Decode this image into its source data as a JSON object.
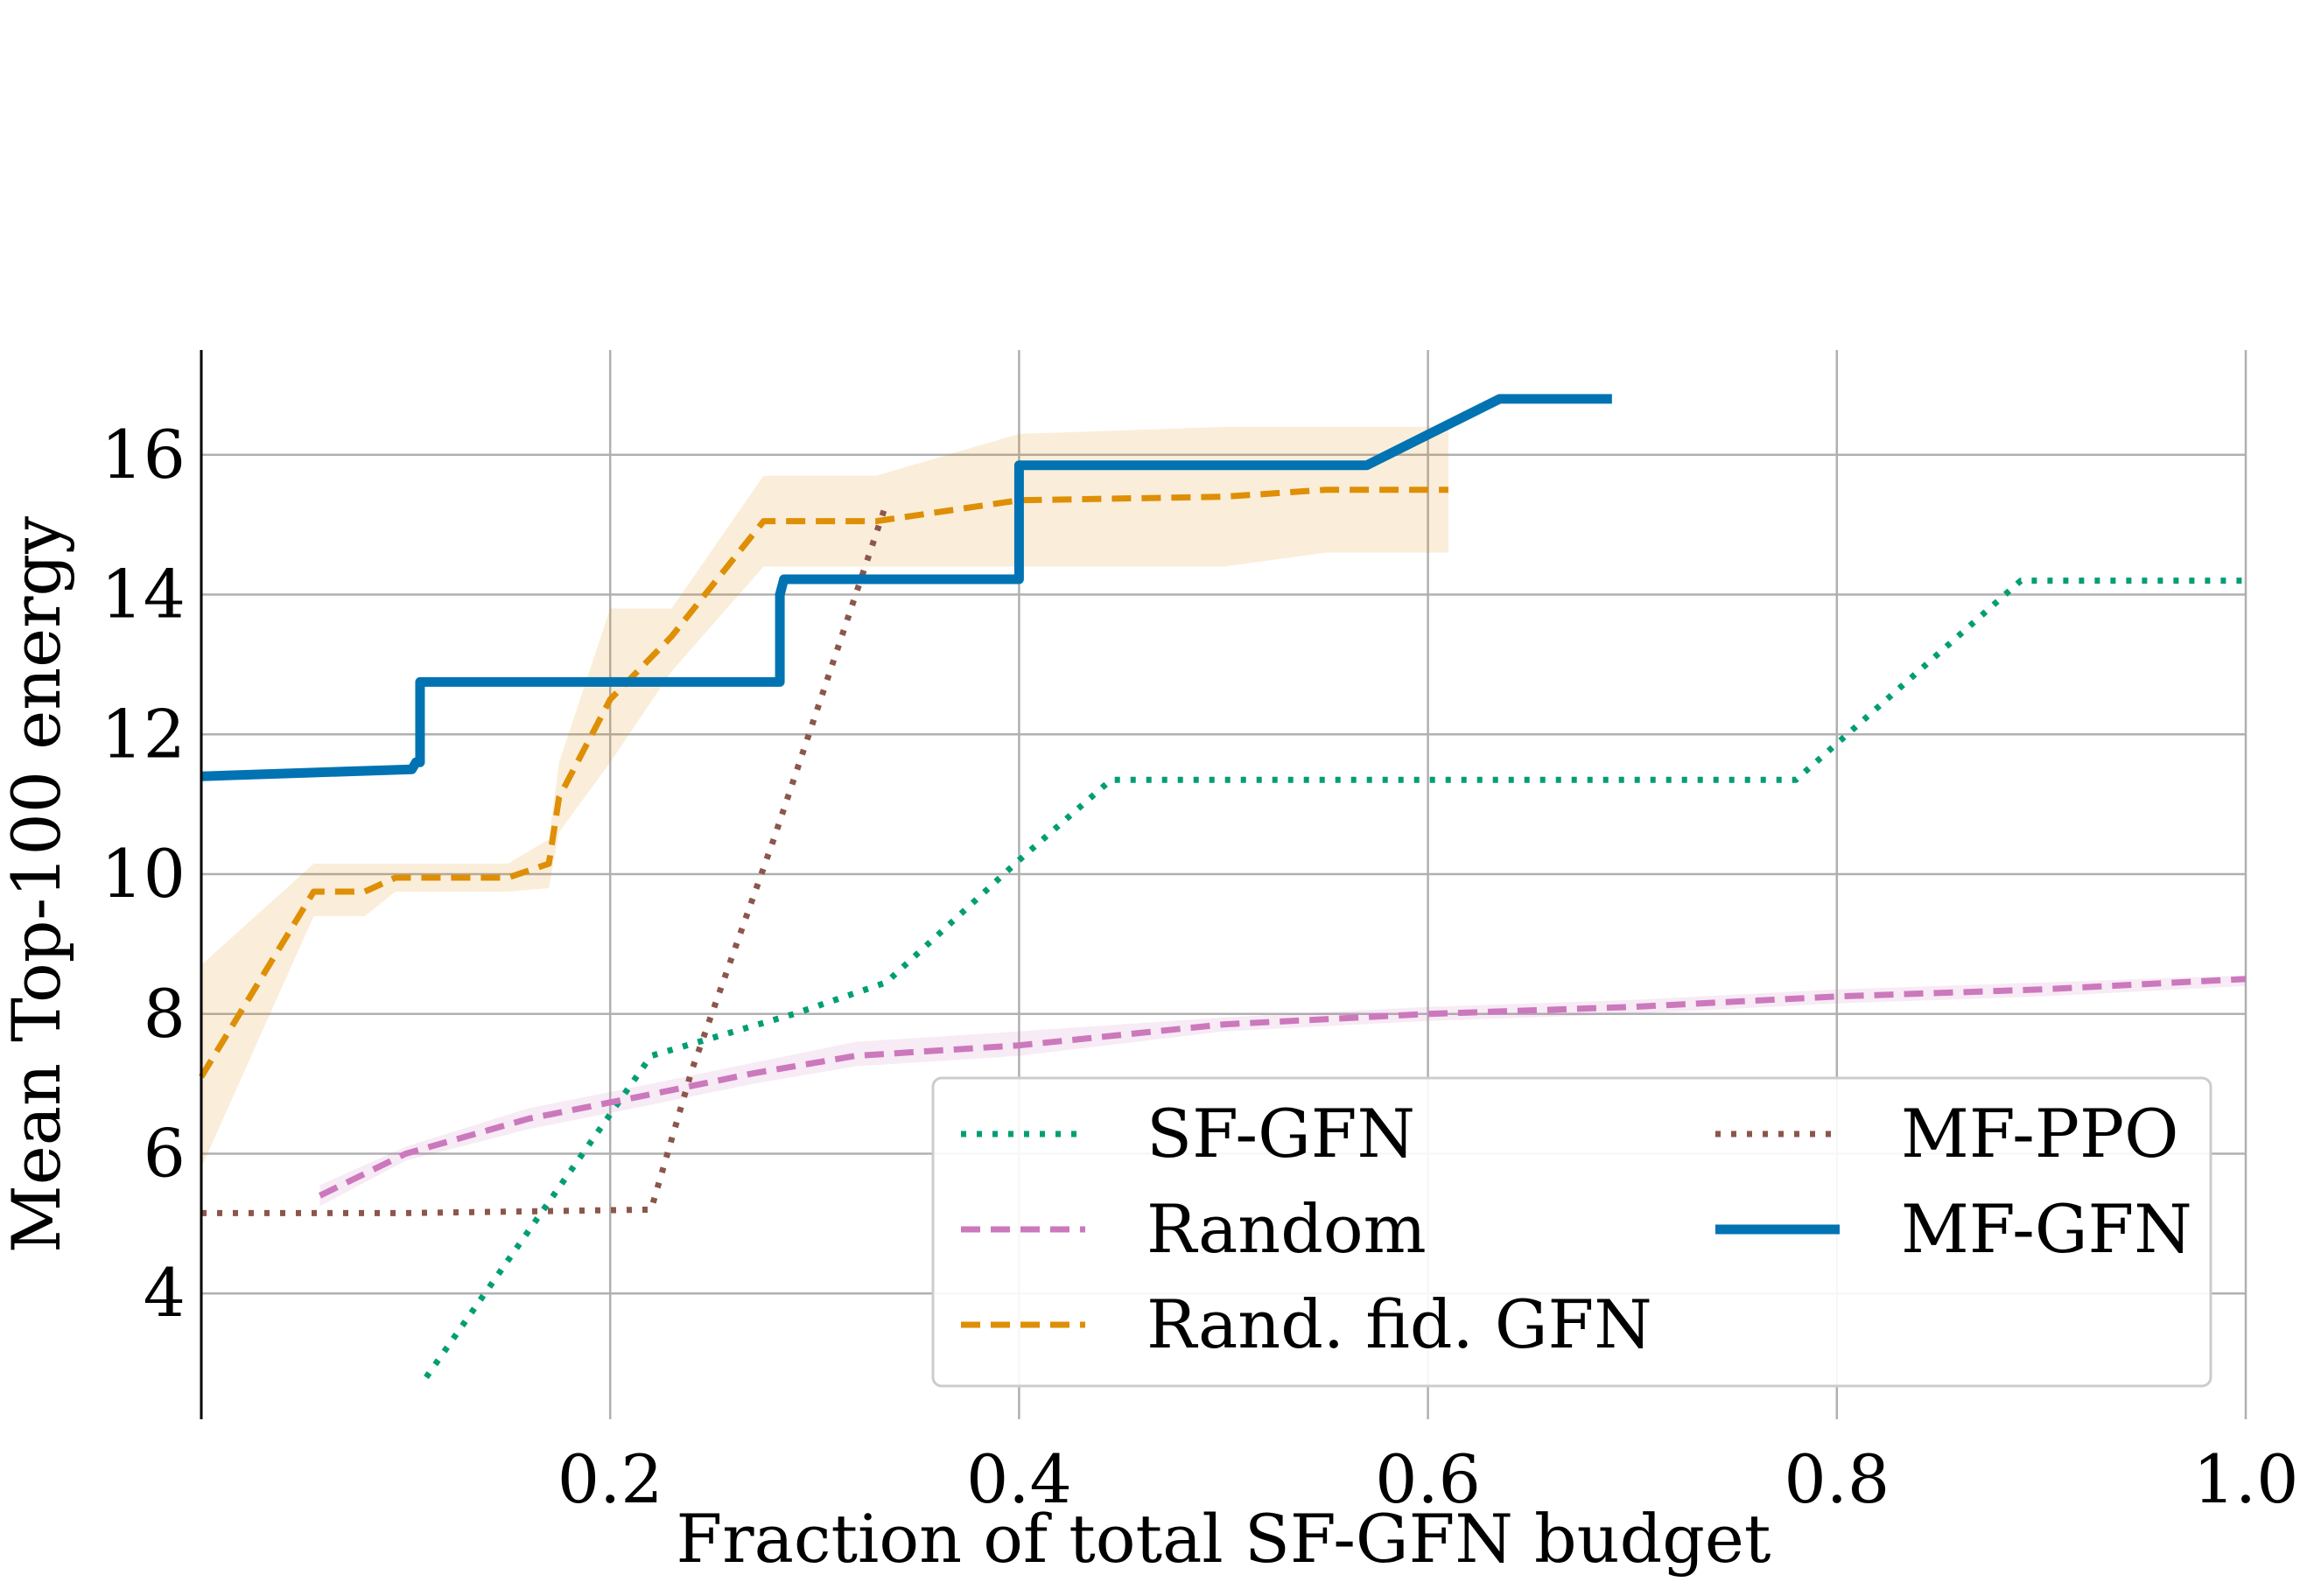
{
  "chart_data": {
    "type": "line",
    "title": "",
    "xlabel": "Fraction of total SF-GFN budget",
    "ylabel": "Mean Top-100 energy",
    "xlim": [
      0.0,
      1.0
    ],
    "ylim": [
      2.2,
      17.5
    ],
    "x_ticks": [
      0.2,
      0.4,
      0.6,
      0.8,
      1.0
    ],
    "x_tick_labels": [
      "0.2",
      "0.4",
      "0.6",
      "0.8",
      "1.0"
    ],
    "y_ticks": [
      4,
      6,
      8,
      10,
      12,
      14,
      16
    ],
    "y_tick_labels": [
      "4",
      "6",
      "8",
      "10",
      "12",
      "14",
      "16"
    ],
    "grid": true,
    "legend_position": "lower right",
    "series": [
      {
        "name": "SF-GFN",
        "color": "#029e73",
        "style": "dotted",
        "x": [
          0.11,
          0.22,
          0.29,
          0.335,
          0.4,
          0.445,
          0.6,
          0.78,
          0.89,
          1.0
        ],
        "y": [
          2.8,
          7.4,
          8.0,
          8.45,
          10.2,
          11.35,
          11.35,
          11.35,
          14.2,
          14.2
        ]
      },
      {
        "name": "Random",
        "color": "#cc78bc",
        "style": "dashed",
        "x": [
          0.058,
          0.1,
          0.16,
          0.22,
          0.27,
          0.32,
          0.4,
          0.5,
          0.6,
          0.7,
          0.8,
          0.9,
          1.0
        ],
        "y": [
          5.4,
          6.0,
          6.5,
          6.85,
          7.15,
          7.4,
          7.55,
          7.85,
          8.0,
          8.1,
          8.25,
          8.35,
          8.5
        ],
        "band_lower": [
          5.25,
          5.9,
          6.35,
          6.7,
          7.0,
          7.25,
          7.4,
          7.75,
          7.9,
          8.0,
          8.15,
          8.25,
          8.4
        ],
        "band_upper": [
          5.55,
          6.1,
          6.65,
          7.0,
          7.3,
          7.6,
          7.75,
          7.95,
          8.1,
          8.2,
          8.35,
          8.45,
          8.55
        ]
      },
      {
        "name": "Rand. fid. GFN",
        "color": "#de8f05",
        "style": "dashed",
        "x": [
          0.0,
          0.055,
          0.08,
          0.095,
          0.15,
          0.17,
          0.175,
          0.2,
          0.23,
          0.275,
          0.33,
          0.4,
          0.5,
          0.55,
          0.61
        ],
        "y": [
          7.1,
          9.75,
          9.75,
          9.95,
          9.95,
          10.15,
          11.1,
          12.5,
          13.4,
          15.05,
          15.05,
          15.35,
          15.4,
          15.5,
          15.5
        ],
        "band_lower": [
          5.8,
          9.4,
          9.4,
          9.75,
          9.75,
          9.8,
          10.6,
          11.6,
          12.9,
          14.4,
          14.4,
          14.4,
          14.4,
          14.6,
          14.6
        ],
        "band_upper": [
          8.7,
          10.15,
          10.15,
          10.15,
          10.15,
          10.5,
          11.6,
          13.8,
          13.8,
          15.7,
          15.7,
          16.3,
          16.4,
          16.4,
          16.4
        ]
      },
      {
        "name": "MF-PPO",
        "color": "#8c564b",
        "style": "dotted",
        "x": [
          0.0,
          0.1,
          0.22,
          0.24,
          0.28,
          0.335
        ],
        "y": [
          5.15,
          5.15,
          5.2,
          7.2,
          10.5,
          15.3
        ]
      },
      {
        "name": "MF-GFN",
        "color": "#0173b2",
        "style": "solid",
        "x": [
          0.0,
          0.103,
          0.105,
          0.107,
          0.107,
          0.283,
          0.283,
          0.285,
          0.4,
          0.4,
          0.57,
          0.635,
          0.69
        ],
        "y": [
          11.4,
          11.5,
          11.6,
          11.6,
          12.75,
          12.75,
          14.0,
          14.22,
          14.22,
          15.85,
          15.85,
          16.8,
          16.8
        ]
      }
    ]
  }
}
